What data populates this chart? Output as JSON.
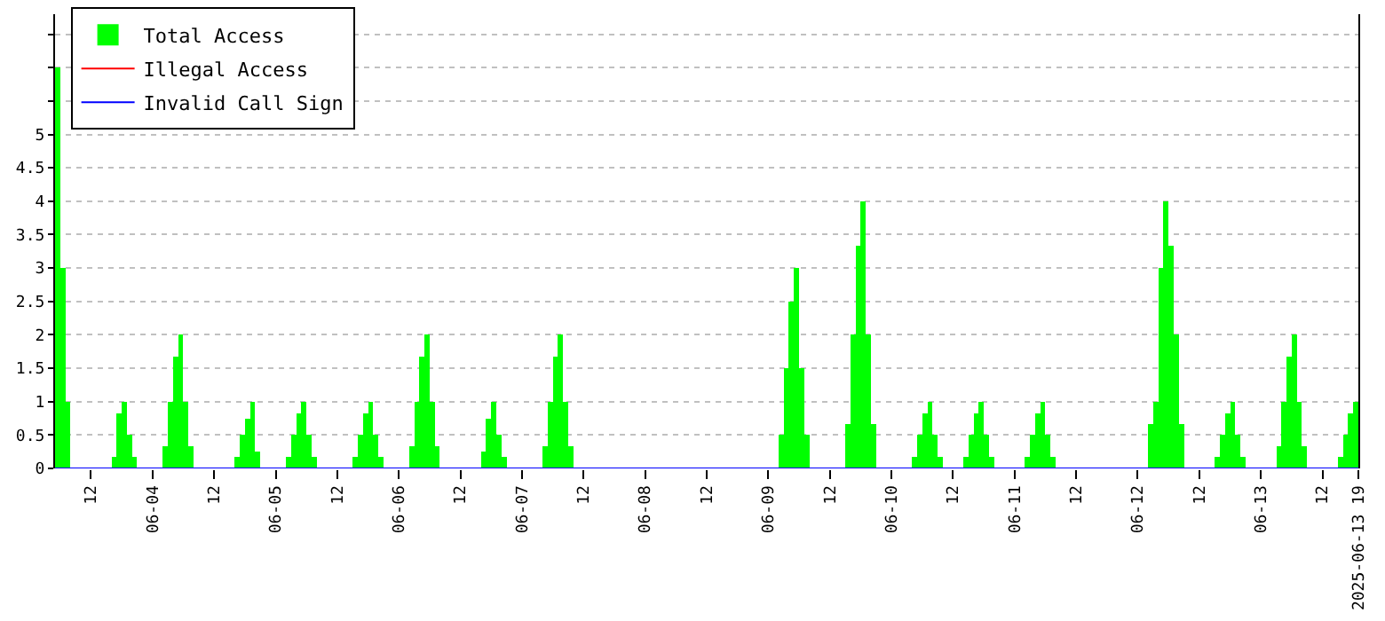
{
  "chart_data": {
    "type": "bar",
    "x": [
      "2025-06-03T05:00",
      "2025-06-03T06:00",
      "2025-06-03T07:00",
      "2025-06-03T16:00",
      "2025-06-03T17:00",
      "2025-06-03T18:00",
      "2025-06-03T19:00",
      "2025-06-03T20:00",
      "2025-06-04T02:00",
      "2025-06-04T03:00",
      "2025-06-04T04:00",
      "2025-06-04T05:00",
      "2025-06-04T06:00",
      "2025-06-04T07:00",
      "2025-06-04T16:00",
      "2025-06-04T17:00",
      "2025-06-04T18:00",
      "2025-06-04T19:00",
      "2025-06-04T20:00",
      "2025-06-05T02:00",
      "2025-06-05T03:00",
      "2025-06-05T04:00",
      "2025-06-05T05:00",
      "2025-06-05T06:00",
      "2025-06-05T07:00",
      "2025-06-05T15:00",
      "2025-06-05T16:00",
      "2025-06-05T17:00",
      "2025-06-05T18:00",
      "2025-06-05T19:00",
      "2025-06-05T20:00",
      "2025-06-06T02:00",
      "2025-06-06T03:00",
      "2025-06-06T04:00",
      "2025-06-06T05:00",
      "2025-06-06T06:00",
      "2025-06-06T07:00",
      "2025-06-06T16:00",
      "2025-06-06T17:00",
      "2025-06-06T18:00",
      "2025-06-06T19:00",
      "2025-06-06T20:00",
      "2025-06-07T04:00",
      "2025-06-07T05:00",
      "2025-06-07T06:00",
      "2025-06-07T07:00",
      "2025-06-07T08:00",
      "2025-06-07T09:00",
      "2025-06-09T02:00",
      "2025-06-09T03:00",
      "2025-06-09T04:00",
      "2025-06-09T05:00",
      "2025-06-09T06:00",
      "2025-06-09T07:00",
      "2025-06-09T15:00",
      "2025-06-09T16:00",
      "2025-06-09T17:00",
      "2025-06-09T18:00",
      "2025-06-09T19:00",
      "2025-06-09T20:00",
      "2025-06-10T04:00",
      "2025-06-10T05:00",
      "2025-06-10T06:00",
      "2025-06-10T07:00",
      "2025-06-10T08:00",
      "2025-06-10T09:00",
      "2025-06-10T14:00",
      "2025-06-10T15:00",
      "2025-06-10T16:00",
      "2025-06-10T17:00",
      "2025-06-10T18:00",
      "2025-06-10T19:00",
      "2025-06-11T02:00",
      "2025-06-11T03:00",
      "2025-06-11T04:00",
      "2025-06-11T05:00",
      "2025-06-11T06:00",
      "2025-06-11T07:00",
      "2025-06-12T02:00",
      "2025-06-12T03:00",
      "2025-06-12T04:00",
      "2025-06-12T05:00",
      "2025-06-12T06:00",
      "2025-06-12T07:00",
      "2025-06-12T08:00",
      "2025-06-12T15:00",
      "2025-06-12T16:00",
      "2025-06-12T17:00",
      "2025-06-12T18:00",
      "2025-06-12T19:00",
      "2025-06-12T20:00",
      "2025-06-13T03:00",
      "2025-06-13T04:00",
      "2025-06-13T05:00",
      "2025-06-13T06:00",
      "2025-06-13T07:00",
      "2025-06-13T08:00",
      "2025-06-13T15:00",
      "2025-06-13T16:00",
      "2025-06-13T17:00",
      "2025-06-13T18:00"
    ],
    "series": [
      {
        "name": "Total Access",
        "color": "#00ff00",
        "values": [
          6,
          3,
          1,
          0.17,
          0.83,
          1,
          0.5,
          0.17,
          0.33,
          1,
          1.67,
          2,
          1,
          0.33,
          0.17,
          0.5,
          0.75,
          1,
          0.25,
          0.17,
          0.5,
          0.83,
          1,
          0.5,
          0.17,
          0.17,
          0.5,
          0.83,
          1,
          0.5,
          0.17,
          0.33,
          1,
          1.67,
          2,
          1,
          0.33,
          0.25,
          0.75,
          1,
          0.5,
          0.17,
          0.33,
          1,
          1.67,
          2,
          1,
          0.33,
          0.5,
          1.5,
          2.5,
          3,
          1.5,
          0.5,
          0.67,
          2,
          3.33,
          4,
          2,
          0.67,
          0.17,
          0.5,
          0.83,
          1,
          0.5,
          0.17,
          0.17,
          0.5,
          0.83,
          1,
          0.5,
          0.17,
          0.17,
          0.5,
          0.83,
          1,
          0.5,
          0.17,
          0.67,
          1,
          3,
          4,
          3.33,
          2,
          0.67,
          0.17,
          0.5,
          0.83,
          1,
          0.5,
          0.17,
          0.33,
          1,
          1.67,
          2,
          1,
          0.33,
          0.17,
          0.5,
          0.83,
          1
        ]
      },
      {
        "name": "Illegal Access",
        "color": "#ff0000",
        "type": "line",
        "values": [
          null,
          null,
          null,
          null,
          null,
          null,
          null,
          null,
          null,
          null,
          null,
          null,
          null,
          null,
          null,
          null,
          null,
          null,
          null,
          null,
          null,
          null,
          null,
          null,
          null,
          null,
          null,
          null,
          null,
          null,
          null,
          null,
          null,
          null,
          null,
          null,
          null,
          null,
          null,
          null,
          null,
          null,
          null,
          null,
          null,
          null,
          null,
          null,
          null,
          null,
          null,
          null,
          null,
          null,
          null,
          null,
          null,
          null,
          null,
          null,
          null,
          null,
          null,
          null,
          null,
          null,
          null,
          null,
          null,
          null,
          null,
          null,
          null,
          null,
          null,
          null,
          null,
          null,
          null,
          null,
          null,
          null,
          null,
          null,
          null,
          null,
          null,
          null,
          null,
          null,
          null,
          null,
          null,
          null,
          null,
          null,
          null,
          null,
          null,
          null,
          null
        ]
      },
      {
        "name": "Invalid Call Sign",
        "color": "#0000ff",
        "type": "line",
        "x": [
          "2025-06-03T05:00",
          "2025-06-13T19:00"
        ],
        "values": [
          0,
          0
        ]
      }
    ],
    "xlim": [
      "2025-06-03T05:00",
      "2025-06-13T19:00"
    ],
    "xticks": [
      {
        "value": "2025-06-03T12:00",
        "label": "12"
      },
      {
        "value": "2025-06-04T00:00",
        "label": "06-04"
      },
      {
        "value": "2025-06-04T12:00",
        "label": "12"
      },
      {
        "value": "2025-06-05T00:00",
        "label": "06-05"
      },
      {
        "value": "2025-06-05T12:00",
        "label": "12"
      },
      {
        "value": "2025-06-06T00:00",
        "label": "06-06"
      },
      {
        "value": "2025-06-06T12:00",
        "label": "12"
      },
      {
        "value": "2025-06-07T00:00",
        "label": "06-07"
      },
      {
        "value": "2025-06-07T12:00",
        "label": "12"
      },
      {
        "value": "2025-06-08T00:00",
        "label": "06-08"
      },
      {
        "value": "2025-06-08T12:00",
        "label": "12"
      },
      {
        "value": "2025-06-09T00:00",
        "label": "06-09"
      },
      {
        "value": "2025-06-09T12:00",
        "label": "12"
      },
      {
        "value": "2025-06-10T00:00",
        "label": "06-10"
      },
      {
        "value": "2025-06-10T12:00",
        "label": "12"
      },
      {
        "value": "2025-06-11T00:00",
        "label": "06-11"
      },
      {
        "value": "2025-06-11T12:00",
        "label": "12"
      },
      {
        "value": "2025-06-12T00:00",
        "label": "06-12"
      },
      {
        "value": "2025-06-12T12:00",
        "label": "12"
      },
      {
        "value": "2025-06-13T00:00",
        "label": "06-13"
      },
      {
        "value": "2025-06-13T12:00",
        "label": "12"
      },
      {
        "value": "2025-06-13T19:00",
        "label": "2025-06-13 19"
      }
    ],
    "ylim": [
      0,
      6.8
    ],
    "yticks": [
      0,
      0.5,
      1,
      1.5,
      2,
      2.5,
      3,
      3.5,
      4,
      4.5,
      5,
      {
        "value": 5.5,
        "label": null
      },
      {
        "value": 6,
        "label": null
      },
      {
        "value": 6.5,
        "label": null
      }
    ],
    "grid": "y",
    "legend": "top left",
    "marker": "none",
    "line_style": "solid"
  }
}
